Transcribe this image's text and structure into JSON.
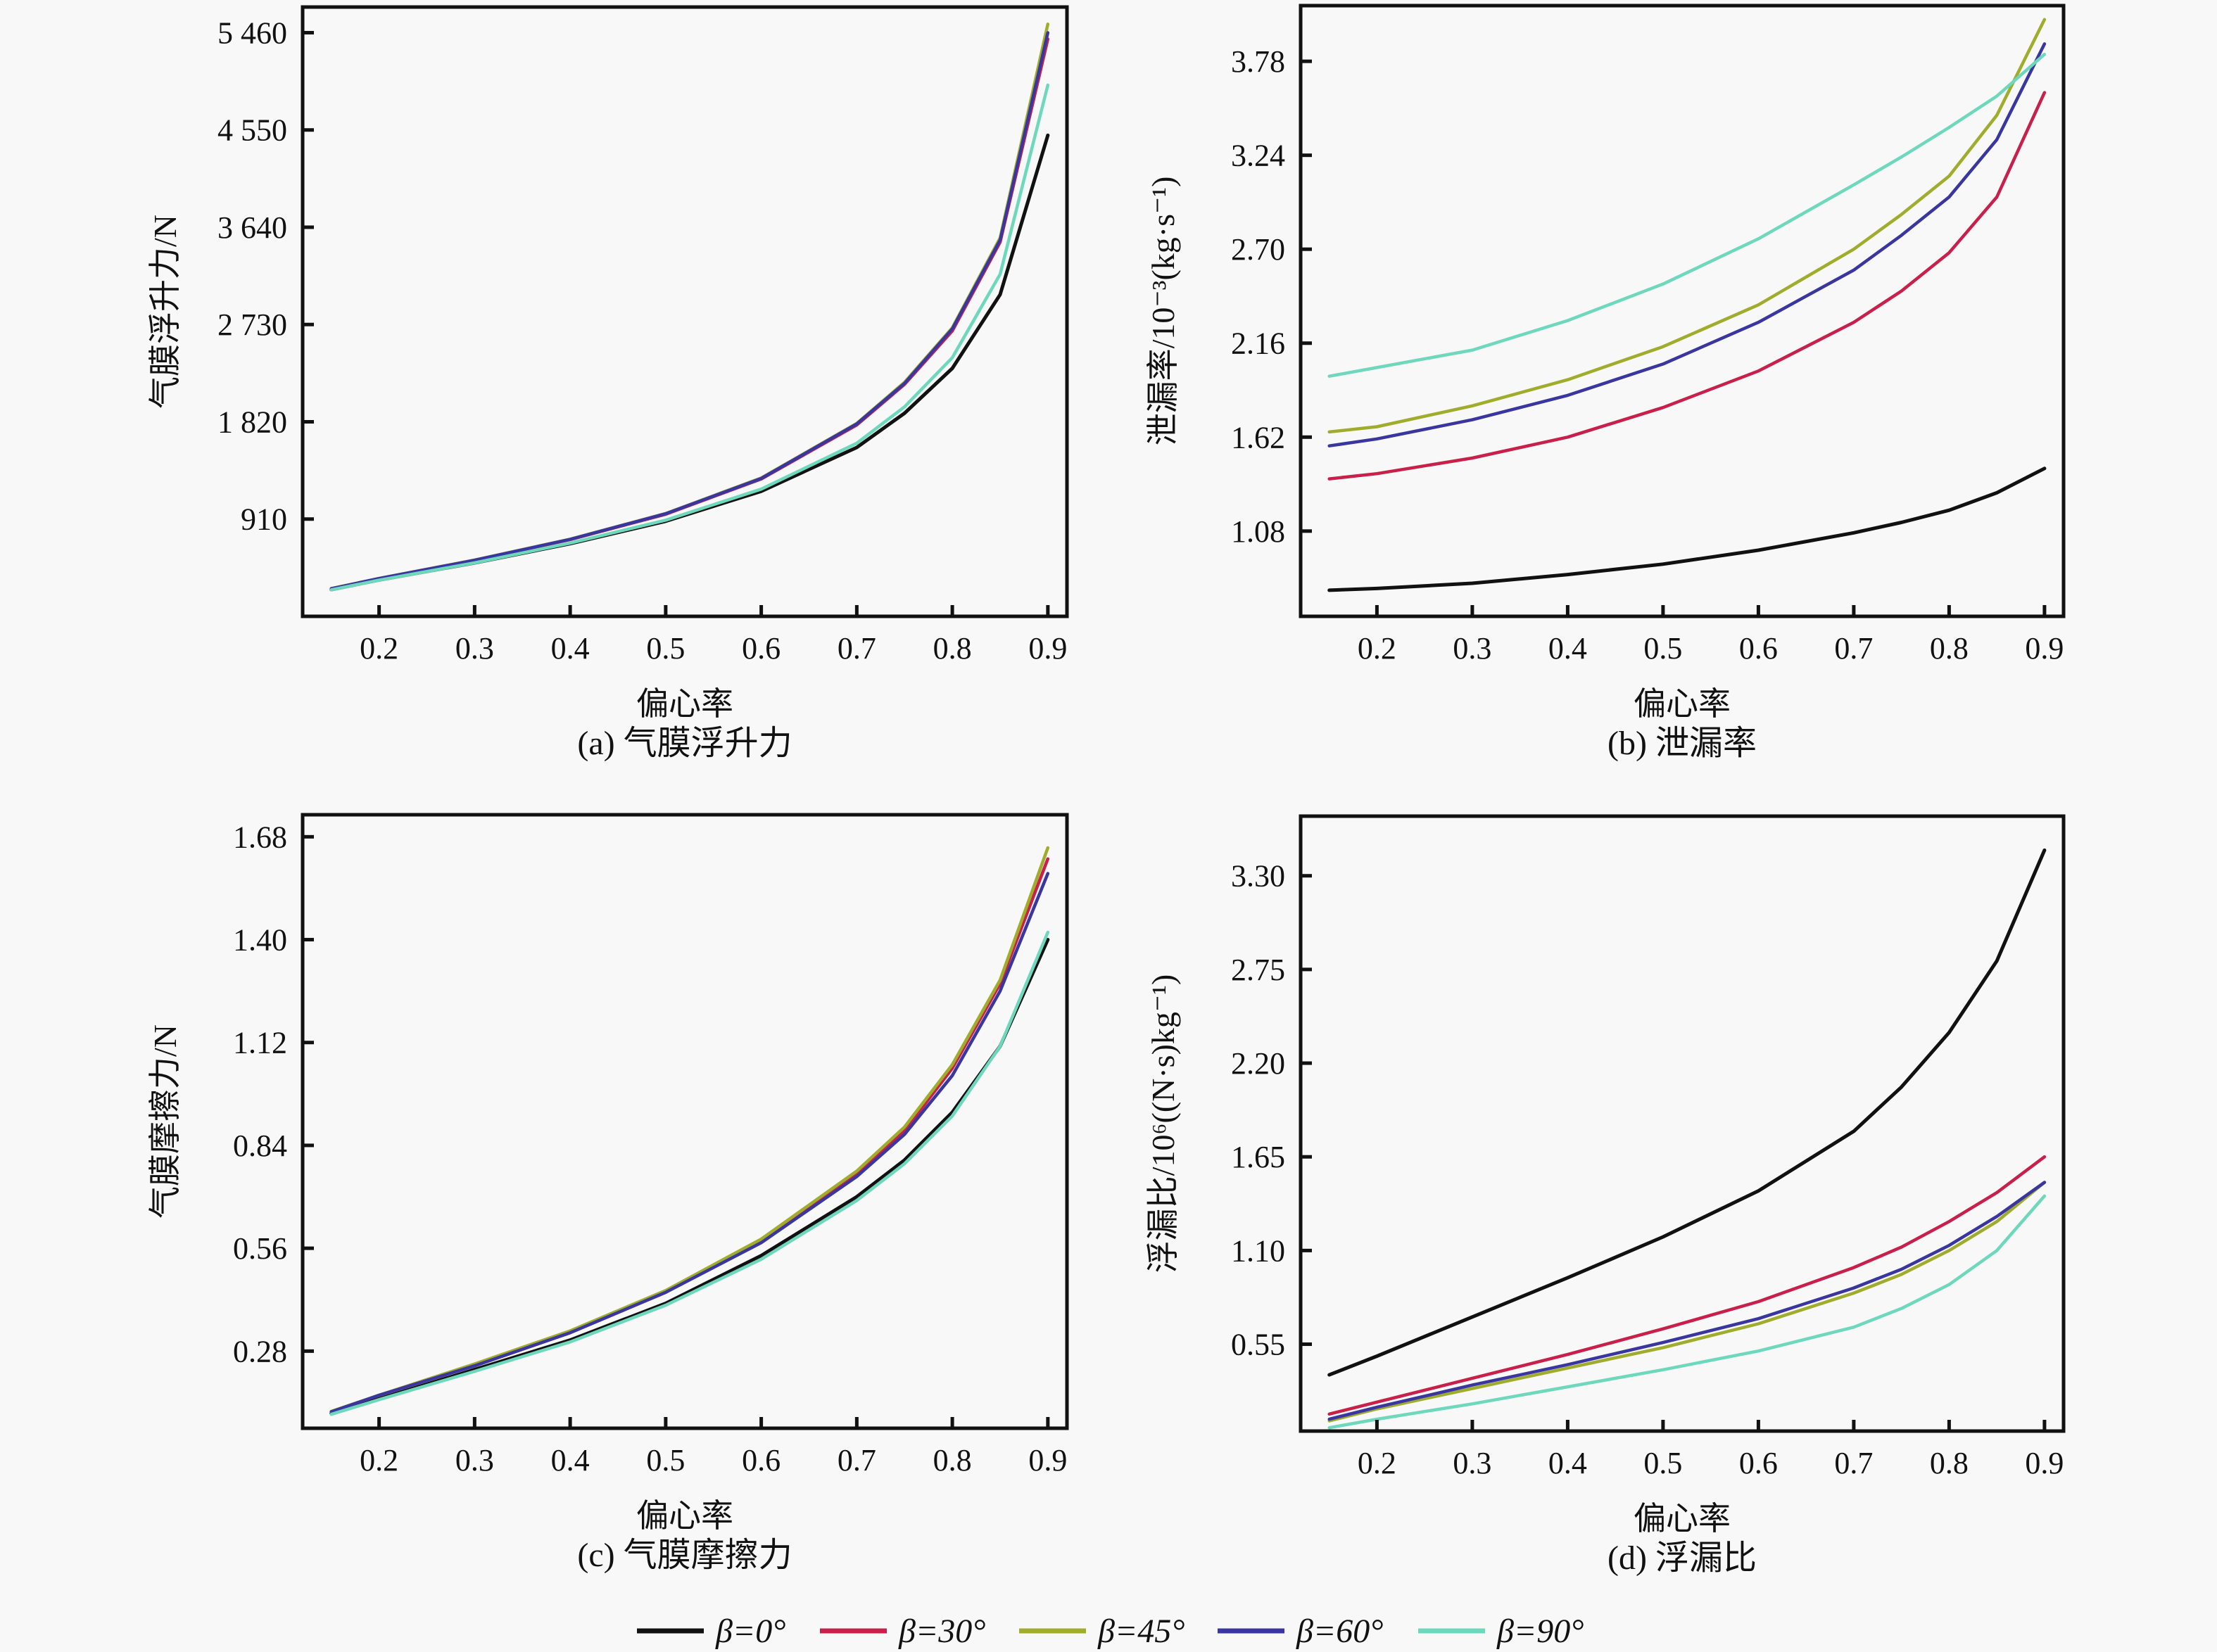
{
  "chart_data": [
    {
      "id": "a",
      "type": "line",
      "caption": "(a) 气膜浮升力",
      "xlabel": "偏心率",
      "ylabel": "气膜浮升力/N",
      "xlim": [
        0.12,
        0.92
      ],
      "ylim": [
        0,
        5700
      ],
      "xticks": [
        0.2,
        0.3,
        0.4,
        0.5,
        0.6,
        0.7,
        0.8,
        0.9
      ],
      "xtick_labels": [
        "0.2",
        "0.3",
        "0.4",
        "0.5",
        "0.6",
        "0.7",
        "0.8",
        "0.9"
      ],
      "yticks": [
        910,
        1820,
        2730,
        3640,
        4550,
        5460
      ],
      "ytick_labels": [
        "910",
        "1 820",
        "2 730",
        "3 640",
        "4 550",
        "5 460"
      ],
      "x": [
        0.15,
        0.2,
        0.3,
        0.4,
        0.5,
        0.6,
        0.7,
        0.75,
        0.8,
        0.85,
        0.9
      ],
      "series": [
        {
          "name": "β=0°",
          "values": [
            250,
            340,
            500,
            680,
            890,
            1170,
            1580,
            1900,
            2320,
            3010,
            4500
          ]
        },
        {
          "name": "β=30°",
          "values": [
            258,
            352,
            523,
            718,
            955,
            1285,
            1790,
            2170,
            2670,
            3500,
            5400
          ]
        },
        {
          "name": "β=45°",
          "values": [
            260,
            355,
            527,
            722,
            962,
            1295,
            1805,
            2190,
            2700,
            3540,
            5540
          ]
        },
        {
          "name": "β=60°",
          "values": [
            259,
            354,
            525,
            720,
            960,
            1290,
            1800,
            2180,
            2690,
            3520,
            5460
          ]
        },
        {
          "name": "β=90°",
          "values": [
            248,
            338,
            500,
            685,
            900,
            1190,
            1620,
            1960,
            2420,
            3200,
            4970
          ]
        }
      ]
    },
    {
      "id": "b",
      "type": "line",
      "caption": "(b) 泄漏率",
      "xlabel": "偏心率",
      "ylabel": "泄漏率/10⁻³(kg·s⁻¹)",
      "xlim": [
        0.12,
        0.92
      ],
      "ylim": [
        0.59,
        4.1
      ],
      "xticks": [
        0.2,
        0.3,
        0.4,
        0.5,
        0.6,
        0.7,
        0.8,
        0.9
      ],
      "xtick_labels": [
        "0.2",
        "0.3",
        "0.4",
        "0.5",
        "0.6",
        "0.7",
        "0.8",
        "0.9"
      ],
      "yticks": [
        1.08,
        1.62,
        2.16,
        2.7,
        3.24,
        3.78
      ],
      "ytick_labels": [
        "1.08",
        "1.62",
        "2.16",
        "2.70",
        "3.24",
        "3.78"
      ],
      "x": [
        0.15,
        0.2,
        0.3,
        0.4,
        0.5,
        0.6,
        0.7,
        0.75,
        0.8,
        0.85,
        0.9
      ],
      "series": [
        {
          "name": "β=0°",
          "values": [
            0.74,
            0.75,
            0.78,
            0.83,
            0.89,
            0.97,
            1.07,
            1.13,
            1.2,
            1.3,
            1.44
          ]
        },
        {
          "name": "β=30°",
          "values": [
            1.38,
            1.41,
            1.5,
            1.62,
            1.79,
            2.0,
            2.28,
            2.46,
            2.68,
            3.0,
            3.6
          ]
        },
        {
          "name": "β=45°",
          "values": [
            1.65,
            1.68,
            1.8,
            1.95,
            2.14,
            2.38,
            2.7,
            2.9,
            3.12,
            3.47,
            4.02
          ]
        },
        {
          "name": "β=60°",
          "values": [
            1.57,
            1.61,
            1.72,
            1.86,
            2.04,
            2.28,
            2.58,
            2.78,
            3.0,
            3.33,
            3.88
          ]
        },
        {
          "name": "β=90°",
          "values": [
            1.97,
            2.02,
            2.12,
            2.29,
            2.5,
            2.76,
            3.07,
            3.23,
            3.4,
            3.58,
            3.82
          ]
        }
      ]
    },
    {
      "id": "c",
      "type": "line",
      "caption": "(c) 气膜摩擦力",
      "xlabel": "偏心率",
      "ylabel": "气膜摩擦力/N",
      "xlim": [
        0.12,
        0.92
      ],
      "ylim": [
        0.07,
        1.74
      ],
      "xticks": [
        0.2,
        0.3,
        0.4,
        0.5,
        0.6,
        0.7,
        0.8,
        0.9
      ],
      "xtick_labels": [
        "0.2",
        "0.3",
        "0.4",
        "0.5",
        "0.6",
        "0.7",
        "0.8",
        "0.9"
      ],
      "yticks": [
        0.28,
        0.56,
        0.84,
        1.12,
        1.4,
        1.68
      ],
      "ytick_labels": [
        "0.28",
        "0.56",
        "0.84",
        "1.12",
        "1.40",
        "1.68"
      ],
      "x": [
        0.15,
        0.2,
        0.3,
        0.4,
        0.5,
        0.6,
        0.7,
        0.75,
        0.8,
        0.85,
        0.9
      ],
      "series": [
        {
          "name": "β=0°",
          "values": [
            0.11,
            0.15,
            0.23,
            0.31,
            0.41,
            0.54,
            0.7,
            0.8,
            0.93,
            1.11,
            1.4
          ]
        },
        {
          "name": "β=30°",
          "values": [
            0.115,
            0.16,
            0.24,
            0.33,
            0.44,
            0.58,
            0.76,
            0.88,
            1.05,
            1.28,
            1.62
          ]
        },
        {
          "name": "β=45°",
          "values": [
            0.116,
            0.16,
            0.245,
            0.335,
            0.445,
            0.585,
            0.77,
            0.89,
            1.06,
            1.29,
            1.65
          ]
        },
        {
          "name": "β=60°",
          "values": [
            0.115,
            0.16,
            0.24,
            0.33,
            0.44,
            0.575,
            0.755,
            0.87,
            1.03,
            1.26,
            1.58
          ]
        },
        {
          "name": "β=90°",
          "values": [
            0.108,
            0.148,
            0.225,
            0.305,
            0.405,
            0.53,
            0.69,
            0.79,
            0.92,
            1.11,
            1.42
          ]
        }
      ]
    },
    {
      "id": "d",
      "type": "line",
      "caption": "(d) 浮漏比",
      "xlabel": "偏心率",
      "ylabel": "浮漏比/10⁶((N·s)kg⁻¹)",
      "xlim": [
        0.12,
        0.92
      ],
      "ylim": [
        0.04,
        3.65
      ],
      "xticks": [
        0.2,
        0.3,
        0.4,
        0.5,
        0.6,
        0.7,
        0.8,
        0.9
      ],
      "xtick_labels": [
        "0.2",
        "0.3",
        "0.4",
        "0.5",
        "0.6",
        "0.7",
        "0.8",
        "0.9"
      ],
      "yticks": [
        0.55,
        1.1,
        1.65,
        2.2,
        2.75,
        3.3
      ],
      "ytick_labels": [
        "0.55",
        "1.10",
        "1.65",
        "2.20",
        "2.75",
        "3.30"
      ],
      "x": [
        0.15,
        0.2,
        0.3,
        0.4,
        0.5,
        0.6,
        0.7,
        0.75,
        0.8,
        0.85,
        0.9
      ],
      "series": [
        {
          "name": "β=0°",
          "values": [
            0.37,
            0.48,
            0.71,
            0.94,
            1.18,
            1.45,
            1.8,
            2.06,
            2.38,
            2.8,
            3.45
          ]
        },
        {
          "name": "β=30°",
          "values": [
            0.14,
            0.21,
            0.35,
            0.49,
            0.64,
            0.8,
            1.0,
            1.12,
            1.27,
            1.44,
            1.65
          ]
        },
        {
          "name": "β=45°",
          "values": [
            0.1,
            0.17,
            0.29,
            0.41,
            0.53,
            0.67,
            0.85,
            0.96,
            1.1,
            1.27,
            1.5
          ]
        },
        {
          "name": "β=60°",
          "values": [
            0.11,
            0.18,
            0.31,
            0.43,
            0.56,
            0.7,
            0.88,
            0.99,
            1.13,
            1.3,
            1.5
          ]
        },
        {
          "name": "β=90°",
          "values": [
            0.06,
            0.11,
            0.2,
            0.3,
            0.4,
            0.51,
            0.65,
            0.76,
            0.9,
            1.1,
            1.42
          ]
        }
      ]
    }
  ],
  "legend": {
    "placement": "bottom-center",
    "items": [
      {
        "label": "β=0°",
        "color": "#111111"
      },
      {
        "label": "β=30°",
        "color": "#c8204a"
      },
      {
        "label": "β=45°",
        "color": "#a0ac2c"
      },
      {
        "label": "β=60°",
        "color": "#3a36a0"
      },
      {
        "label": "β=90°",
        "color": "#6ed8bc"
      }
    ]
  }
}
